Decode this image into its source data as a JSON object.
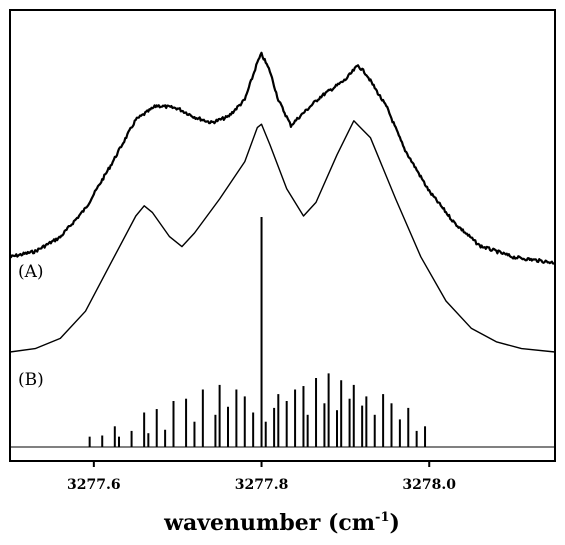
{
  "chart_data": {
    "type": "line",
    "title": "",
    "xlabel": "wavenumber (cm",
    "xlabel_sup": "-1",
    "xlabel_close": ")",
    "ylabel": "",
    "xlim": [
      3277.5,
      3278.15
    ],
    "x_ticks": [
      3277.6,
      3277.8,
      3278.0
    ],
    "x_tick_labels": [
      "3277.6",
      "3277.8",
      "3278.0"
    ],
    "grid": false,
    "legend": "none",
    "trace_labels": [
      "(A)",
      "(B)"
    ],
    "series": [
      {
        "label": "(A)",
        "noisy": true,
        "points": [
          [
            3277.5,
            0.15
          ],
          [
            3277.53,
            0.17
          ],
          [
            3277.56,
            0.22
          ],
          [
            3277.59,
            0.32
          ],
          [
            3277.62,
            0.47
          ],
          [
            3277.65,
            0.63
          ],
          [
            3277.675,
            0.68
          ],
          [
            3277.7,
            0.67
          ],
          [
            3277.72,
            0.64
          ],
          [
            3277.74,
            0.62
          ],
          [
            3277.76,
            0.64
          ],
          [
            3277.78,
            0.7
          ],
          [
            3277.795,
            0.83
          ],
          [
            3277.8,
            0.86
          ],
          [
            3277.81,
            0.8
          ],
          [
            3277.82,
            0.7
          ],
          [
            3277.835,
            0.61
          ],
          [
            3277.845,
            0.64
          ],
          [
            3277.87,
            0.71
          ],
          [
            3277.9,
            0.77
          ],
          [
            3277.915,
            0.82
          ],
          [
            3277.925,
            0.79
          ],
          [
            3277.95,
            0.67
          ],
          [
            3277.97,
            0.53
          ],
          [
            3278.0,
            0.38
          ],
          [
            3278.03,
            0.27
          ],
          [
            3278.06,
            0.19
          ],
          [
            3278.1,
            0.15
          ],
          [
            3278.15,
            0.13
          ]
        ]
      },
      {
        "label": "(B)",
        "noisy": false,
        "points": [
          [
            3277.5,
            0.0
          ],
          [
            3277.53,
            0.01
          ],
          [
            3277.56,
            0.04
          ],
          [
            3277.59,
            0.12
          ],
          [
            3277.62,
            0.26
          ],
          [
            3277.65,
            0.4
          ],
          [
            3277.66,
            0.43
          ],
          [
            3277.67,
            0.41
          ],
          [
            3277.69,
            0.34
          ],
          [
            3277.705,
            0.31
          ],
          [
            3277.72,
            0.35
          ],
          [
            3277.75,
            0.45
          ],
          [
            3277.78,
            0.56
          ],
          [
            3277.795,
            0.66
          ],
          [
            3277.8,
            0.67
          ],
          [
            3277.81,
            0.61
          ],
          [
            3277.83,
            0.48
          ],
          [
            3277.85,
            0.4
          ],
          [
            3277.865,
            0.44
          ],
          [
            3277.89,
            0.58
          ],
          [
            3277.91,
            0.68
          ],
          [
            3277.93,
            0.63
          ],
          [
            3277.96,
            0.45
          ],
          [
            3277.99,
            0.28
          ],
          [
            3278.02,
            0.15
          ],
          [
            3278.05,
            0.07
          ],
          [
            3278.08,
            0.03
          ],
          [
            3278.11,
            0.01
          ],
          [
            3278.15,
            0.0
          ]
        ]
      }
    ],
    "stick_spectrum": {
      "label": "(B)",
      "sticks": [
        [
          3277.595,
          0.09
        ],
        [
          3277.61,
          0.1
        ],
        [
          3277.625,
          0.18
        ],
        [
          3277.63,
          0.09
        ],
        [
          3277.645,
          0.14
        ],
        [
          3277.66,
          0.3
        ],
        [
          3277.665,
          0.12
        ],
        [
          3277.675,
          0.33
        ],
        [
          3277.685,
          0.15
        ],
        [
          3277.695,
          0.4
        ],
        [
          3277.71,
          0.42
        ],
        [
          3277.72,
          0.22
        ],
        [
          3277.73,
          0.5
        ],
        [
          3277.745,
          0.28
        ],
        [
          3277.75,
          0.54
        ],
        [
          3277.76,
          0.35
        ],
        [
          3277.77,
          0.5
        ],
        [
          3277.78,
          0.44
        ],
        [
          3277.79,
          0.3
        ],
        [
          3277.8,
          2.0
        ],
        [
          3277.805,
          0.22
        ],
        [
          3277.815,
          0.34
        ],
        [
          3277.82,
          0.46
        ],
        [
          3277.83,
          0.4
        ],
        [
          3277.84,
          0.5
        ],
        [
          3277.85,
          0.53
        ],
        [
          3277.855,
          0.28
        ],
        [
          3277.865,
          0.6
        ],
        [
          3277.875,
          0.38
        ],
        [
          3277.88,
          0.64
        ],
        [
          3277.89,
          0.32
        ],
        [
          3277.895,
          0.58
        ],
        [
          3277.905,
          0.42
        ],
        [
          3277.91,
          0.54
        ],
        [
          3277.92,
          0.36
        ],
        [
          3277.925,
          0.44
        ],
        [
          3277.935,
          0.28
        ],
        [
          3277.945,
          0.46
        ],
        [
          3277.955,
          0.38
        ],
        [
          3277.965,
          0.24
        ],
        [
          3277.975,
          0.34
        ],
        [
          3277.985,
          0.14
        ],
        [
          3277.995,
          0.18
        ]
      ]
    }
  }
}
